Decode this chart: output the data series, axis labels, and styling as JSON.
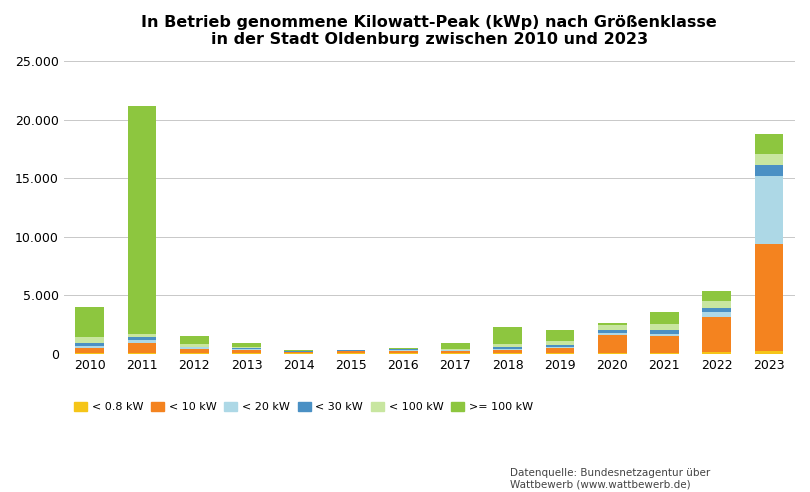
{
  "years": [
    2010,
    2011,
    2012,
    2013,
    2014,
    2015,
    2016,
    2017,
    2018,
    2019,
    2020,
    2021,
    2022,
    2023
  ],
  "categories": [
    "< 0.8 kW",
    "< 10 kW",
    "< 20 kW",
    "< 30 kW",
    "< 100 kW",
    ">= 100 kW"
  ],
  "colors": [
    "#f5c518",
    "#f4831f",
    "#add8e6",
    "#4a90c4",
    "#c8e6a0",
    "#8dc63f"
  ],
  "data": {
    "< 0.8 kW": [
      30,
      60,
      20,
      20,
      15,
      15,
      15,
      15,
      30,
      30,
      50,
      50,
      120,
      200
    ],
    "< 10 kW": [
      480,
      870,
      380,
      290,
      120,
      180,
      220,
      230,
      320,
      480,
      1550,
      1450,
      3000,
      9200
    ],
    "< 20 kW": [
      180,
      230,
      130,
      90,
      40,
      40,
      50,
      50,
      90,
      90,
      180,
      200,
      450,
      5800
    ],
    "< 30 kW": [
      180,
      280,
      80,
      60,
      40,
      60,
      80,
      60,
      130,
      130,
      250,
      350,
      300,
      900
    ],
    "< 100 kW": [
      580,
      280,
      180,
      120,
      40,
      30,
      30,
      70,
      280,
      380,
      380,
      500,
      650,
      1000
    ],
    ">= 100 kW": [
      2550,
      19400,
      730,
      370,
      80,
      20,
      80,
      480,
      1450,
      950,
      180,
      1000,
      800,
      1700
    ]
  },
  "title_line1": "In Betrieb genommene Kilowatt-Peak (kWp) nach Größenklasse",
  "title_line2": "in der Stadt Oldenburg zwischen 2010 und 2023",
  "ylim": [
    0,
    25000
  ],
  "yticks": [
    0,
    5000,
    10000,
    15000,
    20000,
    25000
  ],
  "ytick_labels": [
    "0",
    "5.000",
    "10.000",
    "15.000",
    "20.000",
    "25.000"
  ],
  "source_text": "Datenquelle: Bundesnetzagentur über\nWattbewerb (www.wattbewerb.de)",
  "background_color": "#ffffff",
  "grid_color": "#c8c8c8"
}
